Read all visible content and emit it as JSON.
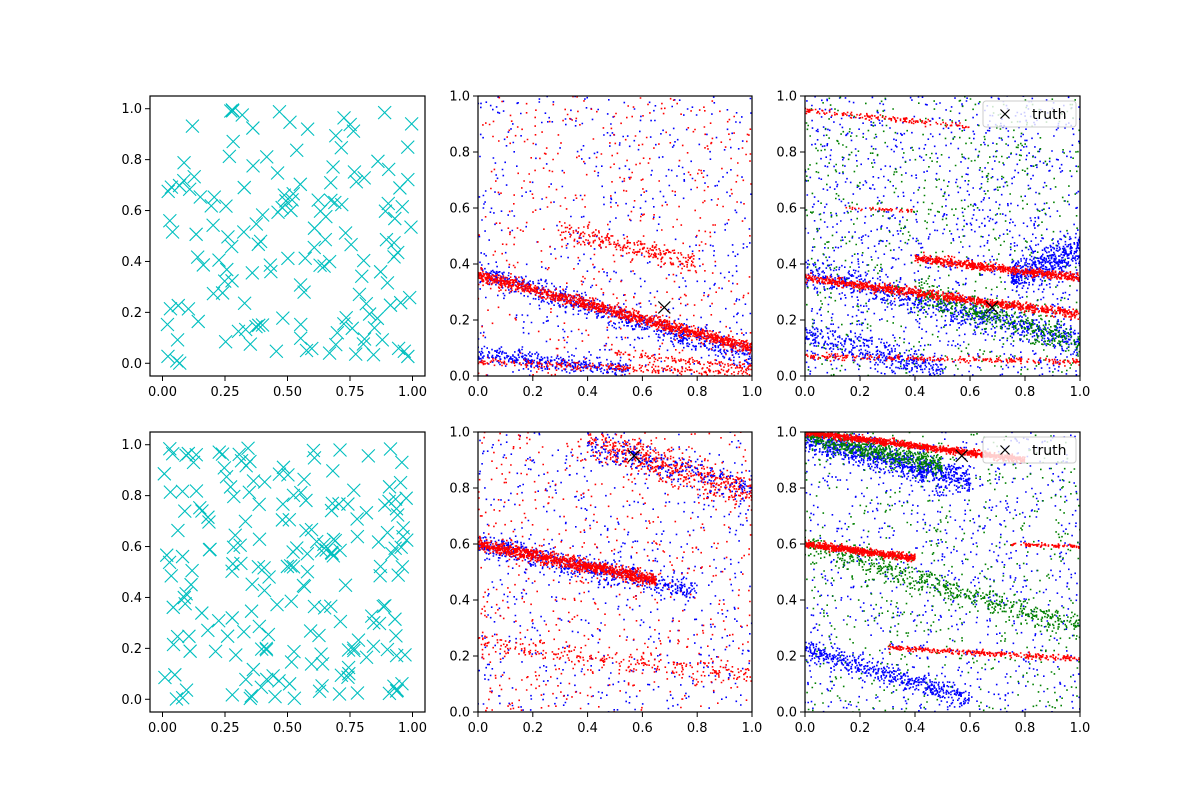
{
  "chart_data": [
    {
      "id": "top-left",
      "type": "scatter",
      "title": "",
      "xlabel": "",
      "ylabel": "",
      "xlim": [
        -0.05,
        1.05
      ],
      "ylim": [
        -0.05,
        1.05
      ],
      "xticks": [
        "0.00",
        "0.25",
        "0.50",
        "0.75",
        "1.00"
      ],
      "yticks": [
        "0.0",
        "0.2",
        "0.4",
        "0.6",
        "0.8",
        "1.0"
      ],
      "grid": false,
      "legend": null,
      "series": [
        {
          "marker": "x",
          "color": "#00bfbf",
          "count": 150,
          "distribution": "uniform",
          "range": [
            0,
            1
          ],
          "seed": 11
        }
      ]
    },
    {
      "id": "top-middle",
      "type": "scatter",
      "title": "",
      "xlabel": "",
      "ylabel": "",
      "xlim": [
        0,
        1
      ],
      "ylim": [
        0,
        1
      ],
      "xticks": [
        "0.0",
        "0.2",
        "0.4",
        "0.6",
        "0.8",
        "1.0"
      ],
      "yticks": [
        "0.0",
        "0.2",
        "0.4",
        "0.6",
        "0.8",
        "1.0"
      ],
      "grid": false,
      "legend": null,
      "truth": {
        "x": 0.68,
        "y": 0.245,
        "color": "#000000",
        "marker": "x"
      },
      "bands": [
        {
          "color": "#0000ff",
          "x": [
            0.0,
            1.0
          ],
          "y": [
            0.37,
            0.07
          ],
          "width": 0.045,
          "count": 700
        },
        {
          "color": "#0000ff",
          "x": [
            0.0,
            0.55
          ],
          "y": [
            0.08,
            0.02
          ],
          "width": 0.03,
          "count": 350
        },
        {
          "color": "#ff0000",
          "x": [
            0.0,
            1.0
          ],
          "y": [
            0.36,
            0.1
          ],
          "width": 0.022,
          "count": 1300
        },
        {
          "color": "#ff0000",
          "x": [
            0.3,
            0.8
          ],
          "y": [
            0.52,
            0.4
          ],
          "width": 0.04,
          "count": 250
        },
        {
          "color": "#ff0000",
          "x": [
            0.0,
            1.0
          ],
          "y": [
            0.05,
            0.01
          ],
          "width": 0.015,
          "count": 250
        },
        {
          "color": "#ff0000",
          "x": [
            0.5,
            1.0
          ],
          "y": [
            0.08,
            0.03
          ],
          "width": 0.015,
          "count": 120
        }
      ],
      "noise": [
        {
          "color": "#0000ff",
          "count": 550,
          "ymin": 0.0,
          "ymax": 1.0
        },
        {
          "color": "#ff0000",
          "count": 500,
          "ymin": 0.0,
          "ymax": 1.0
        }
      ]
    },
    {
      "id": "top-right",
      "type": "scatter",
      "title": "",
      "xlabel": "",
      "ylabel": "",
      "xlim": [
        0,
        1
      ],
      "ylim": [
        0,
        1
      ],
      "xticks": [
        "0.0",
        "0.2",
        "0.4",
        "0.6",
        "0.8",
        "1.0"
      ],
      "yticks": [
        "0.0",
        "0.2",
        "0.4",
        "0.6",
        "0.8",
        "1.0"
      ],
      "grid": false,
      "legend": {
        "position": "top-right",
        "entries": [
          {
            "label": "truth",
            "marker": "x",
            "color": "#000000"
          }
        ]
      },
      "truth": {
        "x": 0.68,
        "y": 0.245,
        "color": "#000000",
        "marker": "x"
      },
      "bands": [
        {
          "color": "#0000ff",
          "x": [
            0.0,
            1.0
          ],
          "y": [
            0.37,
            0.12
          ],
          "width": 0.05,
          "count": 700
        },
        {
          "color": "#0000ff",
          "x": [
            0.0,
            0.5
          ],
          "y": [
            0.15,
            0.02
          ],
          "width": 0.05,
          "count": 350
        },
        {
          "color": "#0000ff",
          "x": [
            0.75,
            1.0
          ],
          "y": [
            0.35,
            0.45
          ],
          "width": 0.06,
          "count": 450
        },
        {
          "color": "#008000",
          "x": [
            0.4,
            1.0
          ],
          "y": [
            0.3,
            0.12
          ],
          "width": 0.05,
          "count": 450
        },
        {
          "color": "#ff0000",
          "x": [
            0.0,
            1.0
          ],
          "y": [
            0.35,
            0.22
          ],
          "width": 0.015,
          "count": 1000
        },
        {
          "color": "#ff0000",
          "x": [
            0.4,
            1.0
          ],
          "y": [
            0.42,
            0.35
          ],
          "width": 0.015,
          "count": 700
        },
        {
          "color": "#ff0000",
          "x": [
            0.0,
            1.0
          ],
          "y": [
            0.07,
            0.05
          ],
          "width": 0.012,
          "count": 250
        },
        {
          "color": "#ff0000",
          "x": [
            0.0,
            0.6
          ],
          "y": [
            0.95,
            0.89
          ],
          "width": 0.01,
          "count": 150
        },
        {
          "color": "#ff0000",
          "x": [
            0.15,
            0.4
          ],
          "y": [
            0.6,
            0.59
          ],
          "width": 0.006,
          "count": 40
        }
      ],
      "noise": [
        {
          "color": "#0000ff",
          "count": 1200,
          "ymin": 0.0,
          "ymax": 1.0
        },
        {
          "color": "#008000",
          "count": 700,
          "ymin": 0.0,
          "ymax": 1.0
        }
      ]
    },
    {
      "id": "bottom-left",
      "type": "scatter",
      "title": "",
      "xlabel": "",
      "ylabel": "",
      "xlim": [
        -0.05,
        1.05
      ],
      "ylim": [
        -0.05,
        1.05
      ],
      "xticks": [
        "0.00",
        "0.25",
        "0.50",
        "0.75",
        "1.00"
      ],
      "yticks": [
        "0.0",
        "0.2",
        "0.4",
        "0.6",
        "0.8",
        "1.0"
      ],
      "grid": false,
      "legend": null,
      "series": [
        {
          "marker": "x",
          "color": "#00bfbf",
          "count": 200,
          "distribution": "uniform",
          "range": [
            0,
            1
          ],
          "seed": 29
        }
      ]
    },
    {
      "id": "bottom-middle",
      "type": "scatter",
      "title": "",
      "xlabel": "",
      "ylabel": "",
      "xlim": [
        0,
        1
      ],
      "ylim": [
        0,
        1
      ],
      "xticks": [
        "0.0",
        "0.2",
        "0.4",
        "0.6",
        "0.8",
        "1.0"
      ],
      "yticks": [
        "0.0",
        "0.2",
        "0.4",
        "0.6",
        "0.8",
        "1.0"
      ],
      "grid": false,
      "legend": null,
      "truth": {
        "x": 0.57,
        "y": 0.915,
        "color": "#000000",
        "marker": "x"
      },
      "bands": [
        {
          "color": "#0000ff",
          "x": [
            0.0,
            0.8
          ],
          "y": [
            0.6,
            0.43
          ],
          "width": 0.045,
          "count": 600
        },
        {
          "color": "#ff0000",
          "x": [
            0.0,
            0.65
          ],
          "y": [
            0.6,
            0.47
          ],
          "width": 0.022,
          "count": 1100
        },
        {
          "color": "#ff0000",
          "x": [
            0.4,
            1.0
          ],
          "y": [
            0.97,
            0.78
          ],
          "width": 0.06,
          "count": 550
        },
        {
          "color": "#0000ff",
          "x": [
            0.4,
            1.0
          ],
          "y": [
            0.95,
            0.8
          ],
          "width": 0.06,
          "count": 250
        },
        {
          "color": "#ff0000",
          "x": [
            0.0,
            1.0
          ],
          "y": [
            0.24,
            0.13
          ],
          "width": 0.04,
          "count": 250
        }
      ],
      "noise": [
        {
          "color": "#0000ff",
          "count": 600,
          "ymin": 0.0,
          "ymax": 1.0
        },
        {
          "color": "#ff0000",
          "count": 600,
          "ymin": 0.0,
          "ymax": 1.0
        }
      ]
    },
    {
      "id": "bottom-right",
      "type": "scatter",
      "title": "",
      "xlabel": "",
      "ylabel": "",
      "xlim": [
        0,
        1
      ],
      "ylim": [
        0,
        1
      ],
      "xticks": [
        "0.0",
        "0.2",
        "0.4",
        "0.6",
        "0.8",
        "1.0"
      ],
      "yticks": [
        "0.0",
        "0.2",
        "0.4",
        "0.6",
        "0.8",
        "1.0"
      ],
      "grid": false,
      "legend": {
        "position": "top-right",
        "entries": [
          {
            "label": "truth",
            "marker": "x",
            "color": "#000000"
          }
        ]
      },
      "truth": {
        "x": 0.57,
        "y": 0.915,
        "color": "#000000",
        "marker": "x"
      },
      "bands": [
        {
          "color": "#0000ff",
          "x": [
            0.0,
            0.6
          ],
          "y": [
            0.98,
            0.82
          ],
          "width": 0.05,
          "count": 900
        },
        {
          "color": "#008000",
          "x": [
            0.0,
            0.5
          ],
          "y": [
            0.99,
            0.88
          ],
          "width": 0.04,
          "count": 600
        },
        {
          "color": "#ff0000",
          "x": [
            0.0,
            0.8
          ],
          "y": [
            1.0,
            0.9
          ],
          "width": 0.012,
          "count": 1200
        },
        {
          "color": "#008000",
          "x": [
            0.0,
            1.0
          ],
          "y": [
            0.6,
            0.3
          ],
          "width": 0.05,
          "count": 600
        },
        {
          "color": "#ff0000",
          "x": [
            0.0,
            0.4
          ],
          "y": [
            0.6,
            0.55
          ],
          "width": 0.012,
          "count": 700
        },
        {
          "color": "#0000ff",
          "x": [
            0.0,
            0.6
          ],
          "y": [
            0.22,
            0.05
          ],
          "width": 0.035,
          "count": 500
        },
        {
          "color": "#ff0000",
          "x": [
            0.3,
            1.0
          ],
          "y": [
            0.23,
            0.19
          ],
          "width": 0.01,
          "count": 300
        },
        {
          "color": "#ff0000",
          "x": [
            0.75,
            1.0
          ],
          "y": [
            0.6,
            0.59
          ],
          "width": 0.006,
          "count": 80
        }
      ],
      "noise": [
        {
          "color": "#0000ff",
          "count": 900,
          "ymin": 0.0,
          "ymax": 1.0
        },
        {
          "color": "#008000",
          "count": 600,
          "ymin": 0.0,
          "ymax": 1.0
        }
      ]
    }
  ]
}
